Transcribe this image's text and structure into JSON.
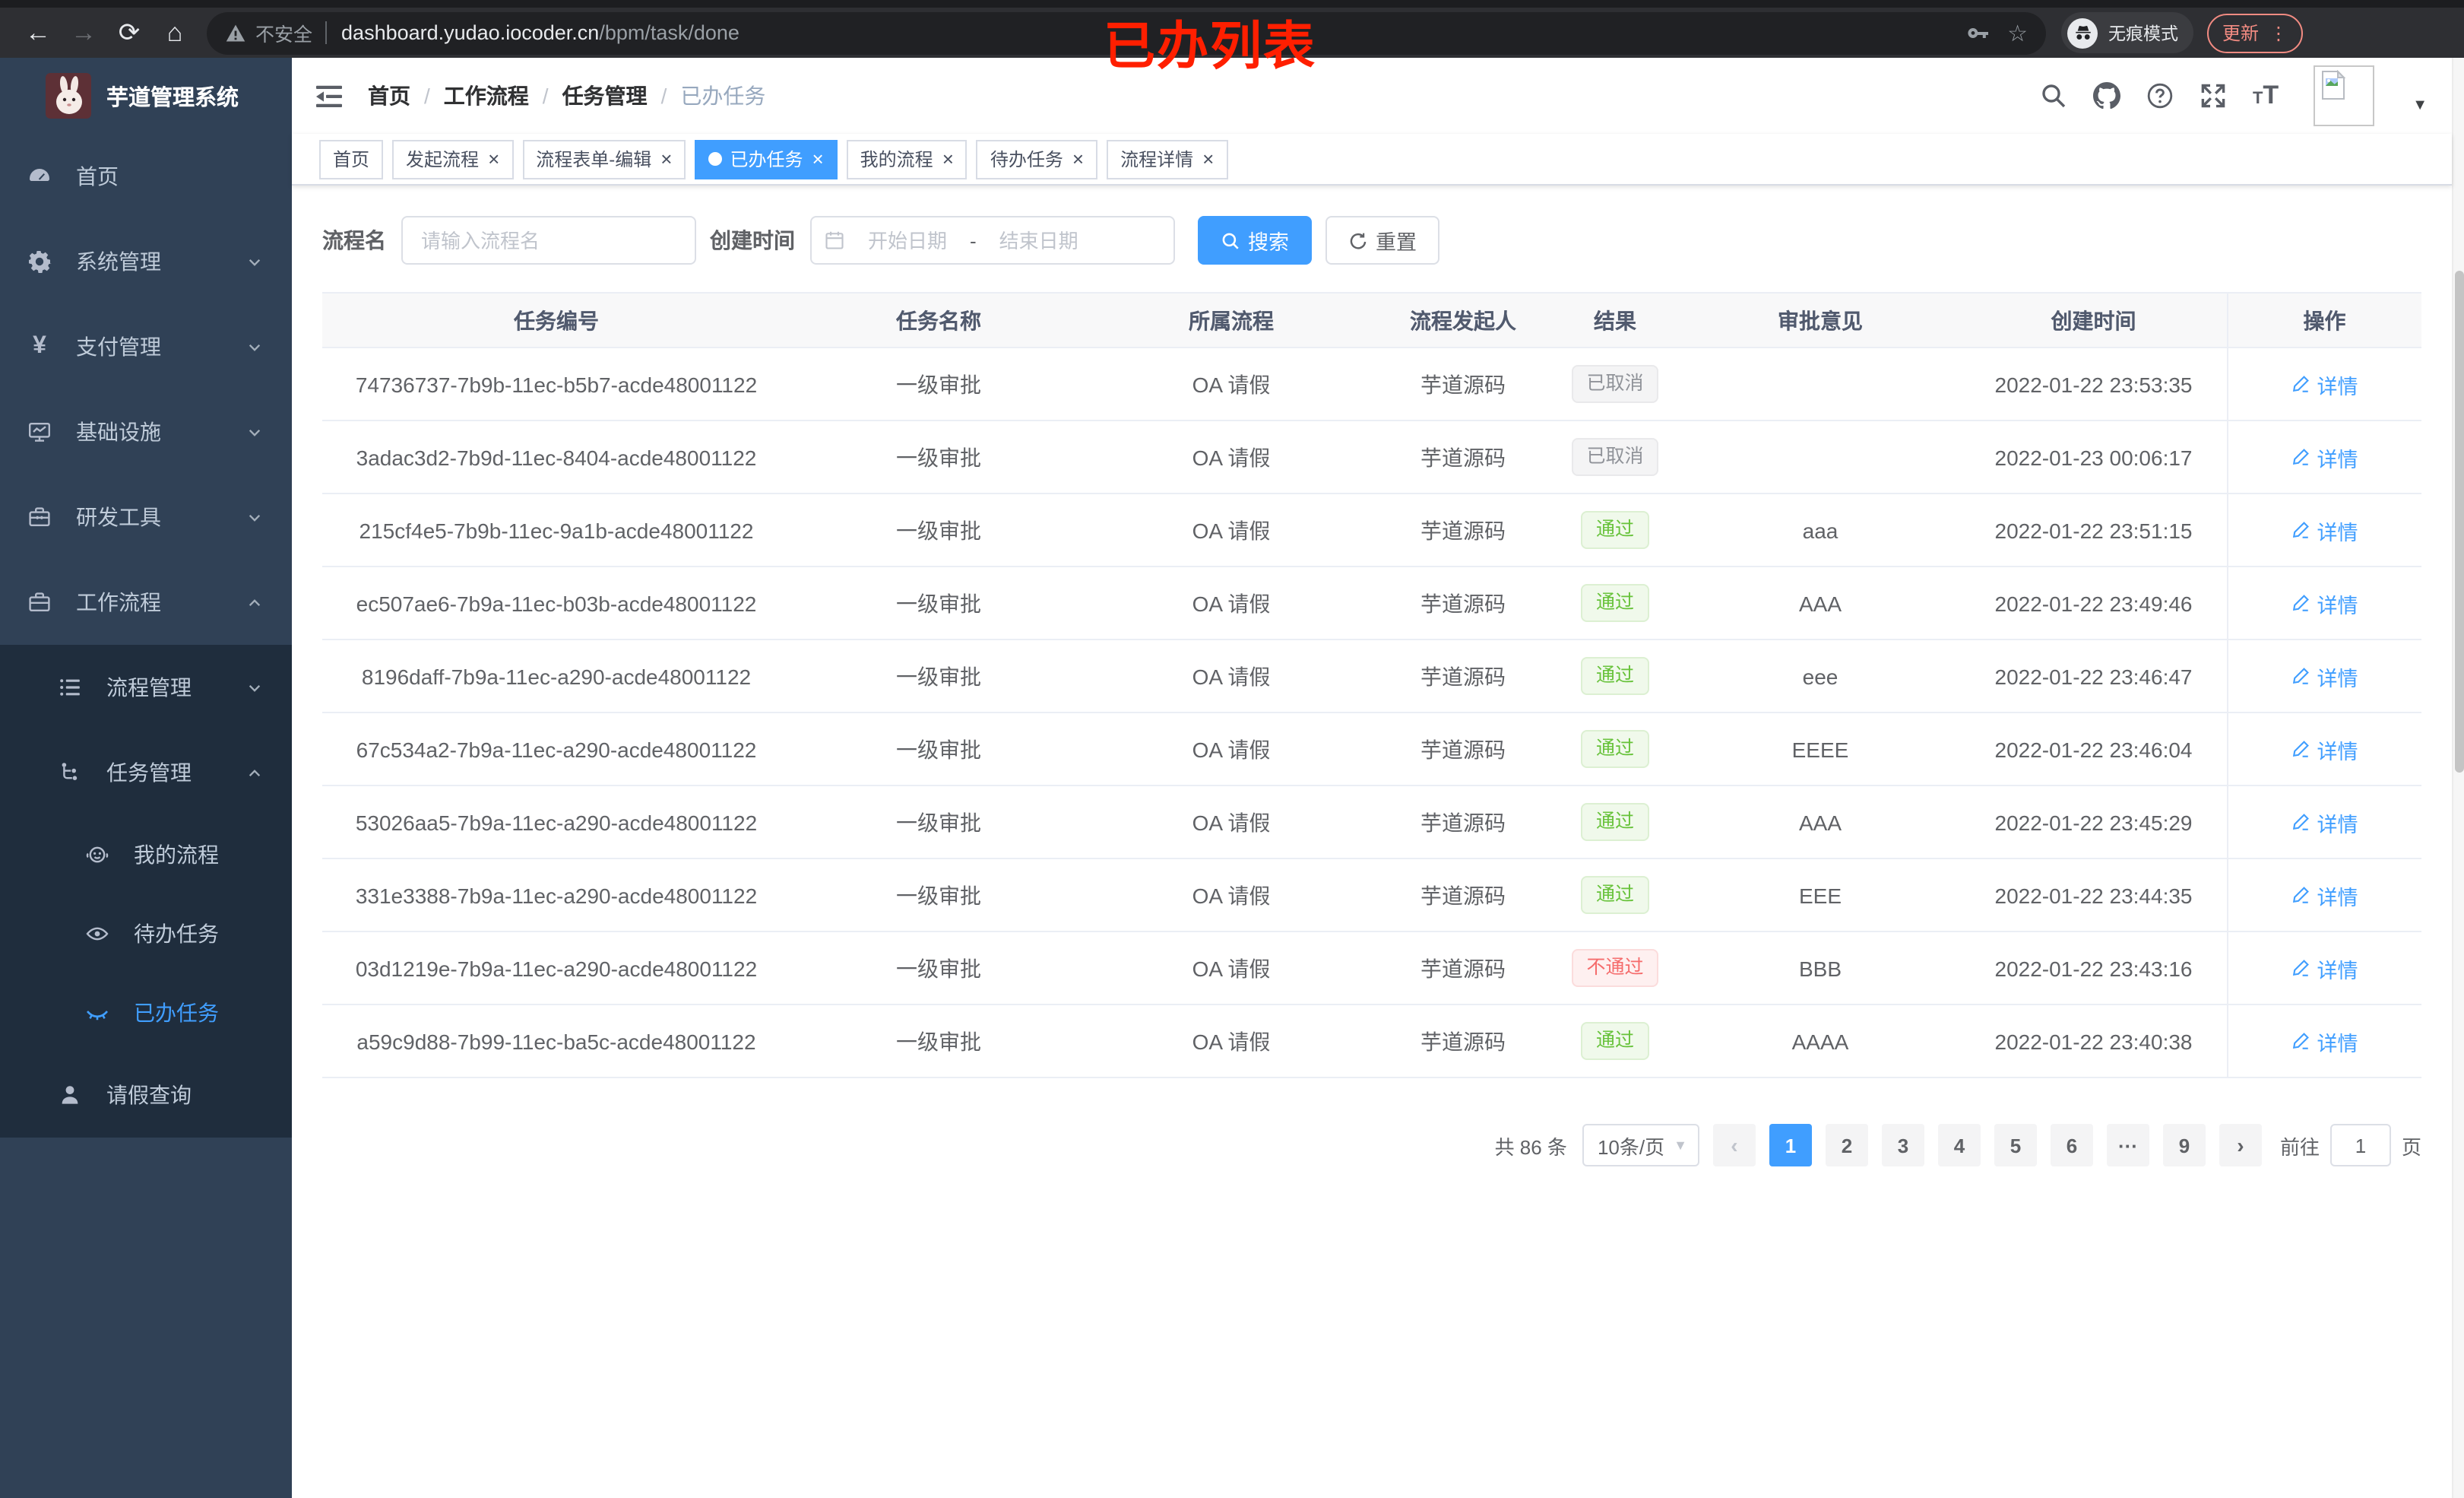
{
  "browser": {
    "security_label": "不安全",
    "url_host": "dashboard.yudao.iocoder.cn",
    "url_path": "/bpm/task/done",
    "incognito_label": "无痕模式",
    "update_label": "更新",
    "menu_dots": "⋮",
    "annotation": "已办列表"
  },
  "sidebar": {
    "title": "芋道管理系统",
    "items": {
      "home": "首页",
      "system": "系统管理",
      "pay": "支付管理",
      "infra": "基础设施",
      "dev": "研发工具",
      "workflow": "工作流程",
      "process_mgmt": "流程管理",
      "task_mgmt": "任务管理",
      "my_process": "我的流程",
      "todo": "待办任务",
      "done": "已办任务",
      "leave": "请假查询"
    }
  },
  "navbar": {
    "breadcrumb": [
      "首页",
      "工作流程",
      "任务管理",
      "已办任务"
    ]
  },
  "tabs": [
    {
      "label": "首页",
      "active": false,
      "closable": false
    },
    {
      "label": "发起流程",
      "active": false,
      "closable": true
    },
    {
      "label": "流程表单-编辑",
      "active": false,
      "closable": true
    },
    {
      "label": "已办任务",
      "active": true,
      "closable": true
    },
    {
      "label": "我的流程",
      "active": false,
      "closable": true
    },
    {
      "label": "待办任务",
      "active": false,
      "closable": true
    },
    {
      "label": "流程详情",
      "active": false,
      "closable": true
    }
  ],
  "filter": {
    "name_label": "流程名",
    "name_placeholder": "请输入流程名",
    "time_label": "创建时间",
    "start_placeholder": "开始日期",
    "range_separator": "-",
    "end_placeholder": "结束日期",
    "search_label": "搜索",
    "reset_label": "重置"
  },
  "table": {
    "columns": [
      "任务编号",
      "任务名称",
      "所属流程",
      "流程发起人",
      "结果",
      "审批意见",
      "创建时间",
      "操作"
    ],
    "action_label": "详情",
    "rows": [
      {
        "id": "74736737-7b9b-11ec-b5b7-acde48001122",
        "name": "一级审批",
        "process": "OA 请假",
        "starter": "芋道源码",
        "result": {
          "label": "已取消",
          "type": "info"
        },
        "opinion": "",
        "created": "2022-01-22 23:53:35"
      },
      {
        "id": "3adac3d2-7b9d-11ec-8404-acde48001122",
        "name": "一级审批",
        "process": "OA 请假",
        "starter": "芋道源码",
        "result": {
          "label": "已取消",
          "type": "info"
        },
        "opinion": "",
        "created": "2022-01-23 00:06:17"
      },
      {
        "id": "215cf4e5-7b9b-11ec-9a1b-acde48001122",
        "name": "一级审批",
        "process": "OA 请假",
        "starter": "芋道源码",
        "result": {
          "label": "通过",
          "type": "success"
        },
        "opinion": "aaa",
        "created": "2022-01-22 23:51:15"
      },
      {
        "id": "ec507ae6-7b9a-11ec-b03b-acde48001122",
        "name": "一级审批",
        "process": "OA 请假",
        "starter": "芋道源码",
        "result": {
          "label": "通过",
          "type": "success"
        },
        "opinion": "AAA",
        "created": "2022-01-22 23:49:46"
      },
      {
        "id": "8196daff-7b9a-11ec-a290-acde48001122",
        "name": "一级审批",
        "process": "OA 请假",
        "starter": "芋道源码",
        "result": {
          "label": "通过",
          "type": "success"
        },
        "opinion": "eee",
        "created": "2022-01-22 23:46:47"
      },
      {
        "id": "67c534a2-7b9a-11ec-a290-acde48001122",
        "name": "一级审批",
        "process": "OA 请假",
        "starter": "芋道源码",
        "result": {
          "label": "通过",
          "type": "success"
        },
        "opinion": "EEEE",
        "created": "2022-01-22 23:46:04"
      },
      {
        "id": "53026aa5-7b9a-11ec-a290-acde48001122",
        "name": "一级审批",
        "process": "OA 请假",
        "starter": "芋道源码",
        "result": {
          "label": "通过",
          "type": "success"
        },
        "opinion": "AAA",
        "created": "2022-01-22 23:45:29"
      },
      {
        "id": "331e3388-7b9a-11ec-a290-acde48001122",
        "name": "一级审批",
        "process": "OA 请假",
        "starter": "芋道源码",
        "result": {
          "label": "通过",
          "type": "success"
        },
        "opinion": "EEE",
        "created": "2022-01-22 23:44:35"
      },
      {
        "id": "03d1219e-7b9a-11ec-a290-acde48001122",
        "name": "一级审批",
        "process": "OA 请假",
        "starter": "芋道源码",
        "result": {
          "label": "不通过",
          "type": "danger"
        },
        "opinion": "BBB",
        "created": "2022-01-22 23:43:16"
      },
      {
        "id": "a59c9d88-7b99-11ec-ba5c-acde48001122",
        "name": "一级审批",
        "process": "OA 请假",
        "starter": "芋道源码",
        "result": {
          "label": "通过",
          "type": "success"
        },
        "opinion": "AAAA",
        "created": "2022-01-22 23:40:38"
      }
    ]
  },
  "pagination": {
    "total_label": "共 86 条",
    "page_size": "10条/页",
    "pages": [
      "1",
      "2",
      "3",
      "4",
      "5",
      "6",
      "···",
      "9"
    ],
    "active_page": "1",
    "prev": "‹",
    "next": "›",
    "goto_label": "前往",
    "goto_value": "1",
    "unit_label": "页"
  },
  "colors": {
    "accent": "#409eff",
    "sidebar_bg": "#304156",
    "submenu_bg": "#1f2d3d",
    "success": "#67c23a",
    "danger": "#f56c6c",
    "info": "#909399",
    "annotation_red": "#ff1f00"
  }
}
